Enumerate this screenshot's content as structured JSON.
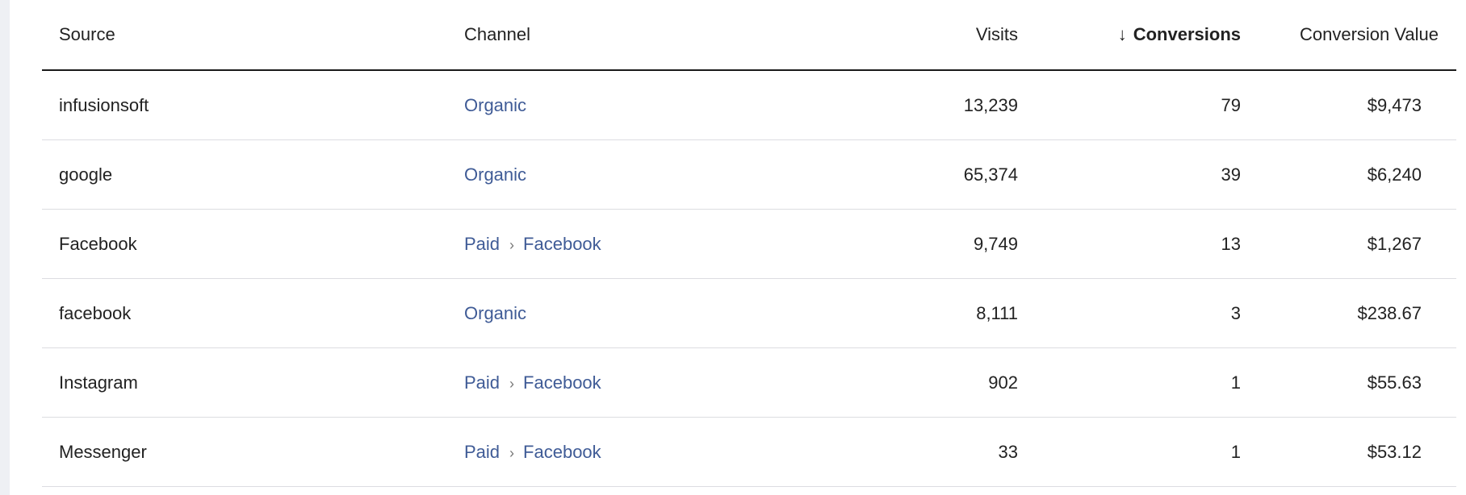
{
  "table": {
    "headers": {
      "source": "Source",
      "channel": "Channel",
      "visits": "Visits",
      "conversions": "Conversions",
      "conversion_value": "Conversion Value"
    },
    "sort_icon": "↓",
    "sorted_column": "conversions",
    "link_color": "#3f5b96",
    "separator_icon": "›",
    "rows": [
      {
        "source": "infusionsoft",
        "channel": [
          "Organic"
        ],
        "visits": "13,239",
        "conversions": "79",
        "conversion_value": "$9,473"
      },
      {
        "source": "google",
        "channel": [
          "Organic"
        ],
        "visits": "65,374",
        "conversions": "39",
        "conversion_value": "$6,240"
      },
      {
        "source": "Facebook",
        "channel": [
          "Paid",
          "Facebook"
        ],
        "visits": "9,749",
        "conversions": "13",
        "conversion_value": "$1,267"
      },
      {
        "source": "facebook",
        "channel": [
          "Organic"
        ],
        "visits": "8,111",
        "conversions": "3",
        "conversion_value": "$238.67"
      },
      {
        "source": "Instagram",
        "channel": [
          "Paid",
          "Facebook"
        ],
        "visits": "902",
        "conversions": "1",
        "conversion_value": "$55.63"
      },
      {
        "source": "Messenger",
        "channel": [
          "Paid",
          "Facebook"
        ],
        "visits": "33",
        "conversions": "1",
        "conversion_value": "$53.12"
      }
    ]
  }
}
